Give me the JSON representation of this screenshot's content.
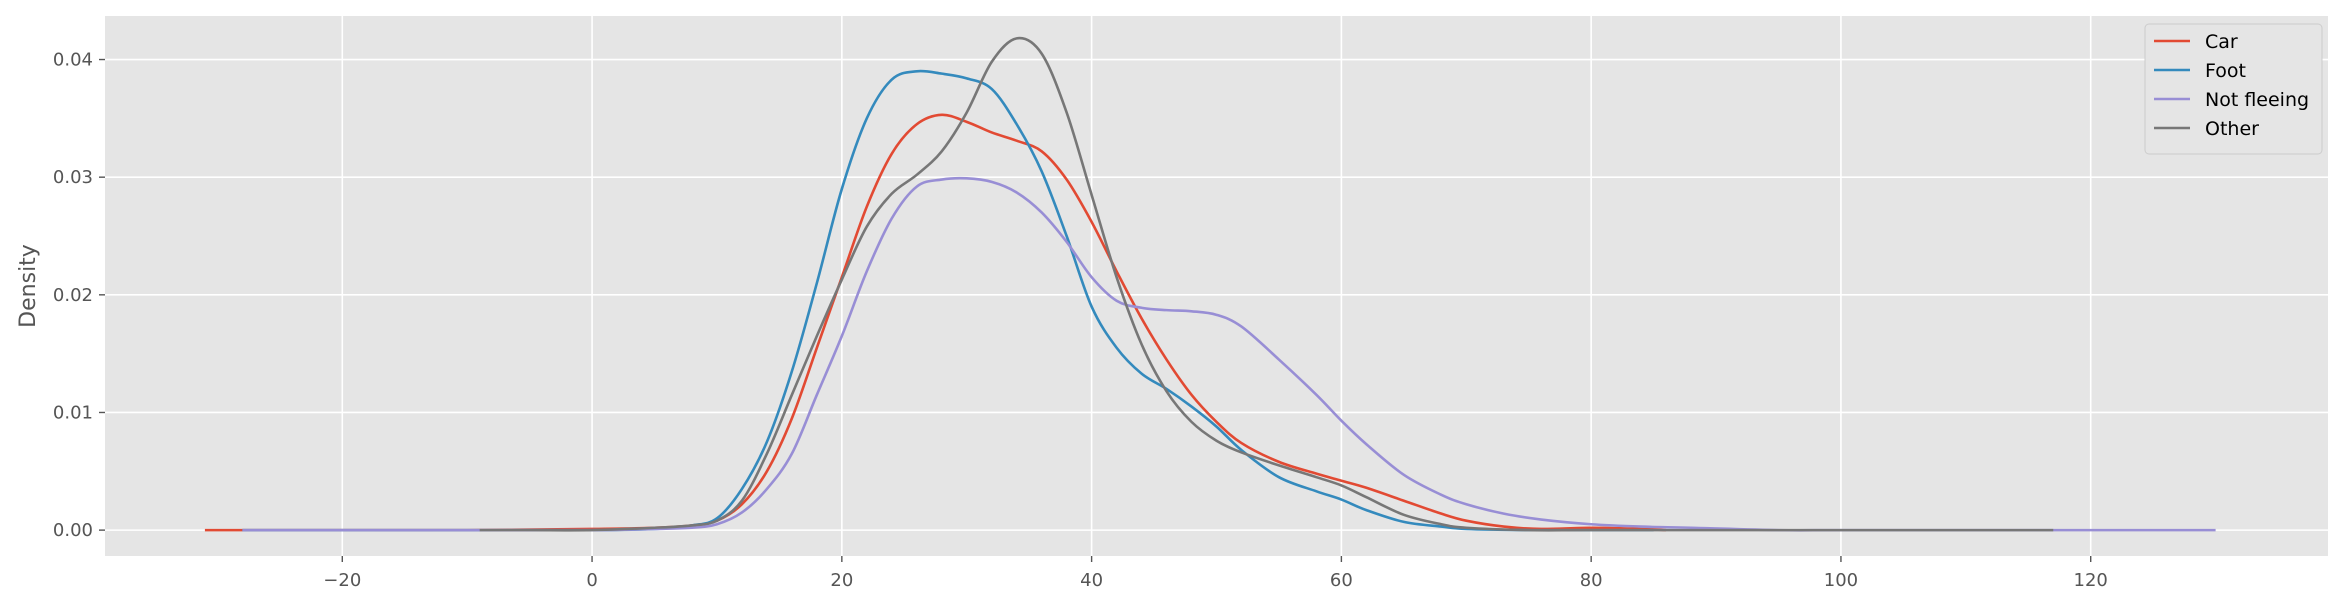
{
  "chart_data": {
    "type": "line",
    "title": "",
    "xlabel": "",
    "ylabel": "Density",
    "xlim": [
      -39,
      139
    ],
    "ylim": [
      -0.0022,
      0.0437
    ],
    "xticks": [
      -20,
      0,
      20,
      40,
      60,
      80,
      100,
      120
    ],
    "xtick_labels": [
      "−20",
      "0",
      "20",
      "40",
      "60",
      "80",
      "100",
      "120"
    ],
    "yticks": [
      0.0,
      0.01,
      0.02,
      0.03,
      0.04
    ],
    "ytick_labels": [
      "0.00",
      "0.01",
      "0.02",
      "0.03",
      "0.04"
    ],
    "grid": true,
    "legend_position": "top-right",
    "series": [
      {
        "name": "Car",
        "color": "#E24A33",
        "points": [
          [
            -31,
            0
          ],
          [
            -20,
            0
          ],
          [
            -10,
            0
          ],
          [
            0,
            0.0001
          ],
          [
            5,
            0.0002
          ],
          [
            8,
            0.0004
          ],
          [
            10,
            0.0008
          ],
          [
            12,
            0.0022
          ],
          [
            14,
            0.005
          ],
          [
            16,
            0.0095
          ],
          [
            18,
            0.0155
          ],
          [
            20,
            0.0215
          ],
          [
            22,
            0.0275
          ],
          [
            24,
            0.032
          ],
          [
            26,
            0.0345
          ],
          [
            28,
            0.0353
          ],
          [
            30,
            0.0347
          ],
          [
            32,
            0.0338
          ],
          [
            34,
            0.0331
          ],
          [
            36,
            0.0322
          ],
          [
            38,
            0.0298
          ],
          [
            40,
            0.0262
          ],
          [
            42,
            0.022
          ],
          [
            44,
            0.018
          ],
          [
            46,
            0.0145
          ],
          [
            48,
            0.0115
          ],
          [
            50,
            0.0092
          ],
          [
            52,
            0.0074
          ],
          [
            55,
            0.0058
          ],
          [
            58,
            0.0048
          ],
          [
            60,
            0.0042
          ],
          [
            62,
            0.0036
          ],
          [
            65,
            0.0025
          ],
          [
            68,
            0.0014
          ],
          [
            70,
            0.0008
          ],
          [
            73,
            0.0003
          ],
          [
            76,
            0.0001
          ],
          [
            80,
            0.0002
          ],
          [
            84,
            0.0001
          ],
          [
            86,
            0
          ]
        ]
      },
      {
        "name": "Foot",
        "color": "#348ABD",
        "points": [
          [
            -28,
            0
          ],
          [
            -20,
            0
          ],
          [
            -10,
            0
          ],
          [
            0,
            0
          ],
          [
            5,
            0.0001
          ],
          [
            8,
            0.0004
          ],
          [
            10,
            0.001
          ],
          [
            12,
            0.0035
          ],
          [
            14,
            0.0075
          ],
          [
            16,
            0.0135
          ],
          [
            18,
            0.021
          ],
          [
            20,
            0.029
          ],
          [
            22,
            0.035
          ],
          [
            24,
            0.0383
          ],
          [
            26,
            0.039
          ],
          [
            28,
            0.0388
          ],
          [
            30,
            0.0384
          ],
          [
            32,
            0.0375
          ],
          [
            34,
            0.0345
          ],
          [
            36,
            0.0305
          ],
          [
            38,
            0.025
          ],
          [
            40,
            0.019
          ],
          [
            42,
            0.0155
          ],
          [
            44,
            0.0133
          ],
          [
            46,
            0.012
          ],
          [
            48,
            0.0105
          ],
          [
            50,
            0.0088
          ],
          [
            52,
            0.0068
          ],
          [
            55,
            0.0045
          ],
          [
            58,
            0.0033
          ],
          [
            60,
            0.0026
          ],
          [
            62,
            0.0017
          ],
          [
            65,
            0.0007
          ],
          [
            68,
            0.0003
          ],
          [
            70,
            0.0001
          ],
          [
            75,
            0
          ],
          [
            80,
            0
          ],
          [
            85,
            0
          ]
        ]
      },
      {
        "name": "Not fleeing",
        "color": "#988ED5",
        "points": [
          [
            -28,
            0
          ],
          [
            -20,
            0
          ],
          [
            -10,
            0
          ],
          [
            0,
            0
          ],
          [
            5,
            0.0001
          ],
          [
            8,
            0.0002
          ],
          [
            10,
            0.0005
          ],
          [
            12,
            0.0015
          ],
          [
            14,
            0.0035
          ],
          [
            16,
            0.0065
          ],
          [
            18,
            0.0115
          ],
          [
            20,
            0.0165
          ],
          [
            22,
            0.022
          ],
          [
            24,
            0.0265
          ],
          [
            26,
            0.0292
          ],
          [
            28,
            0.0298
          ],
          [
            30,
            0.0299
          ],
          [
            32,
            0.0296
          ],
          [
            34,
            0.0287
          ],
          [
            36,
            0.027
          ],
          [
            38,
            0.0245
          ],
          [
            40,
            0.0215
          ],
          [
            42,
            0.0195
          ],
          [
            44,
            0.0189
          ],
          [
            46,
            0.0187
          ],
          [
            48,
            0.0186
          ],
          [
            50,
            0.0183
          ],
          [
            52,
            0.0173
          ],
          [
            55,
            0.0145
          ],
          [
            58,
            0.0115
          ],
          [
            60,
            0.0093
          ],
          [
            62,
            0.0073
          ],
          [
            65,
            0.0047
          ],
          [
            68,
            0.003
          ],
          [
            70,
            0.0022
          ],
          [
            73,
            0.0014
          ],
          [
            76,
            0.0009
          ],
          [
            80,
            0.0005
          ],
          [
            84,
            0.0003
          ],
          [
            88,
            0.0002
          ],
          [
            95,
            0
          ],
          [
            100,
            0
          ],
          [
            110,
            0
          ],
          [
            120,
            0
          ],
          [
            130,
            0
          ]
        ]
      },
      {
        "name": "Other",
        "color": "#777777",
        "points": [
          [
            -9,
            0
          ],
          [
            -5,
            0
          ],
          [
            0,
            0
          ],
          [
            5,
            0.0002
          ],
          [
            8,
            0.0004
          ],
          [
            10,
            0.0008
          ],
          [
            12,
            0.0025
          ],
          [
            14,
            0.0065
          ],
          [
            16,
            0.0115
          ],
          [
            18,
            0.0165
          ],
          [
            20,
            0.0213
          ],
          [
            22,
            0.0258
          ],
          [
            24,
            0.0286
          ],
          [
            26,
            0.0302
          ],
          [
            28,
            0.0322
          ],
          [
            30,
            0.0355
          ],
          [
            32,
            0.0398
          ],
          [
            34,
            0.0418
          ],
          [
            36,
            0.0405
          ],
          [
            38,
            0.0355
          ],
          [
            40,
            0.0285
          ],
          [
            42,
            0.0215
          ],
          [
            44,
            0.0158
          ],
          [
            46,
            0.0118
          ],
          [
            48,
            0.0092
          ],
          [
            50,
            0.0076
          ],
          [
            52,
            0.0066
          ],
          [
            55,
            0.0055
          ],
          [
            58,
            0.0045
          ],
          [
            60,
            0.0038
          ],
          [
            62,
            0.0028
          ],
          [
            65,
            0.0013
          ],
          [
            68,
            0.0005
          ],
          [
            70,
            0.0002
          ],
          [
            75,
            0
          ],
          [
            80,
            0
          ],
          [
            90,
            0
          ],
          [
            100,
            0
          ],
          [
            110,
            0
          ],
          [
            117,
            0
          ]
        ]
      }
    ]
  }
}
